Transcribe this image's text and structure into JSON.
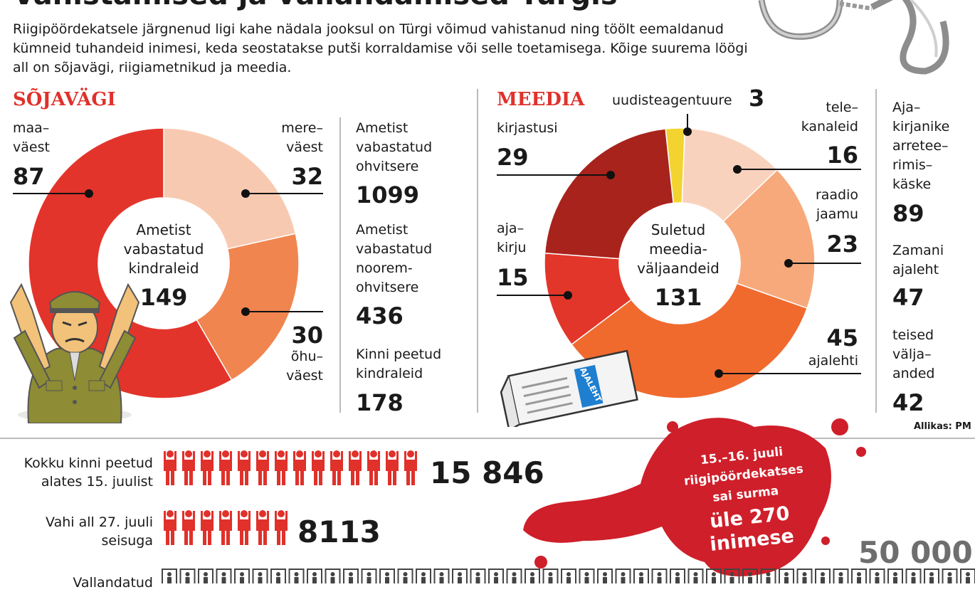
{
  "header": {
    "title": "Vahistamised ja vallandamised Türgis",
    "intro": "Riigipöördekatsele järgnenud ligi kahe nädala jooksul on Türgi võimud vahistanud ning töölt eemaldanud kümneid tuhandeid inimesi, keda seostatakse putši korraldamise või selle toetamisega. Kõige suurema löögi all on sõjavägi, riigiametnikud ja meedia."
  },
  "military": {
    "heading": "SÕJAVÄGI",
    "center_label": "Ametist vabastatud kindraleid",
    "center_value": "149",
    "segments": [
      {
        "label": "maa-väest",
        "value": 87,
        "color": "#e3342b"
      },
      {
        "label": "mere-väest",
        "value": 32,
        "color": "#f8c9b1"
      },
      {
        "label": "õhu-väest",
        "value": 30,
        "color": "#f0854f"
      }
    ],
    "labels": {
      "land": "maa–\nväest",
      "sea": "mere–\nväest",
      "air": "õhu–\nväest"
    },
    "values": {
      "land": "87",
      "sea": "32",
      "air": "30"
    }
  },
  "military_stats": [
    {
      "label": "Ametist vabastatud ohvitsere",
      "value": "1099"
    },
    {
      "label": "Ametist vabastatud noorem-ohvitsere",
      "value": "436"
    },
    {
      "label": "Kinni peetud kindraleid",
      "value": "178"
    }
  ],
  "media": {
    "heading": "MEEDIA",
    "center_label": "Suletud meedia-väljaandeid",
    "center_value": "131",
    "newspaper_label": "AJALEHT",
    "segments": [
      {
        "label": "uudisteagentuure",
        "value": 3,
        "color": "#f2d32f"
      },
      {
        "label": "telekanaleid",
        "value": 16,
        "color": "#f9d2bd"
      },
      {
        "label": "raadiojaamu",
        "value": 23,
        "color": "#f7a97b"
      },
      {
        "label": "ajalehti",
        "value": 45,
        "color": "#f06a2e"
      },
      {
        "label": "ajakirju",
        "value": 15,
        "color": "#e2362a"
      },
      {
        "label": "kirjastusi",
        "value": 29,
        "color": "#a8231c"
      }
    ],
    "labels": {
      "agency": "uudisteagentuure",
      "tv": "tele–\nkanaleid",
      "radio": "raadio\njaamu",
      "papers": "ajalehti",
      "magazines": "aja–\nkirju",
      "publishers": "kirjastusi"
    },
    "values": {
      "agency": "3",
      "tv": "16",
      "radio": "23",
      "papers": "45",
      "magazines": "15",
      "publishers": "29"
    }
  },
  "media_stats": [
    {
      "label": "Aja–\nkirjanike\narretee–\nrimis–\nkäske",
      "value": "89"
    },
    {
      "label": "Zamani\najaleht",
      "value": "47"
    },
    {
      "label": "teised\nvälja–\nanded",
      "value": "42"
    }
  ],
  "source": "Allikas: PM",
  "bottom": {
    "detained_label": "Kokku kinni peetud\nalates 15. juulist",
    "detained_value": "15 846",
    "detained_icons": 14,
    "custody_label": "Vahi all 27. juuli\nseisuga",
    "custody_value": "8113",
    "custody_icons": 7,
    "fired_label": "Vallandatud",
    "fired_value": "50 000",
    "fired_icons": 45,
    "death_note": "15.–16. juuli\nriigipöördekatses\nsai surma",
    "death_value": "üle 270\ninimese"
  },
  "chart_data": [
    {
      "type": "pie",
      "title": "SÕJAVÄGI",
      "center_label": "Ametist vabastatud kindraleid",
      "center_value": 149,
      "categories": [
        "maaväest",
        "mereväest",
        "õhuväest"
      ],
      "values": [
        87,
        32,
        30
      ]
    },
    {
      "type": "pie",
      "title": "MEEDIA",
      "center_label": "Suletud meediaväljaandeid",
      "center_value": 131,
      "categories": [
        "uudisteagentuure",
        "telekanaleid",
        "raadiojaamu",
        "ajalehti",
        "ajakirju",
        "kirjastusi"
      ],
      "values": [
        3,
        16,
        23,
        45,
        15,
        29
      ]
    },
    {
      "type": "bar",
      "categories": [
        "Kokku kinni peetud alates 15. juulist",
        "Vahi all 27. juuli seisuga",
        "Vallandatud"
      ],
      "values": [
        15846,
        8113,
        50000
      ]
    }
  ]
}
